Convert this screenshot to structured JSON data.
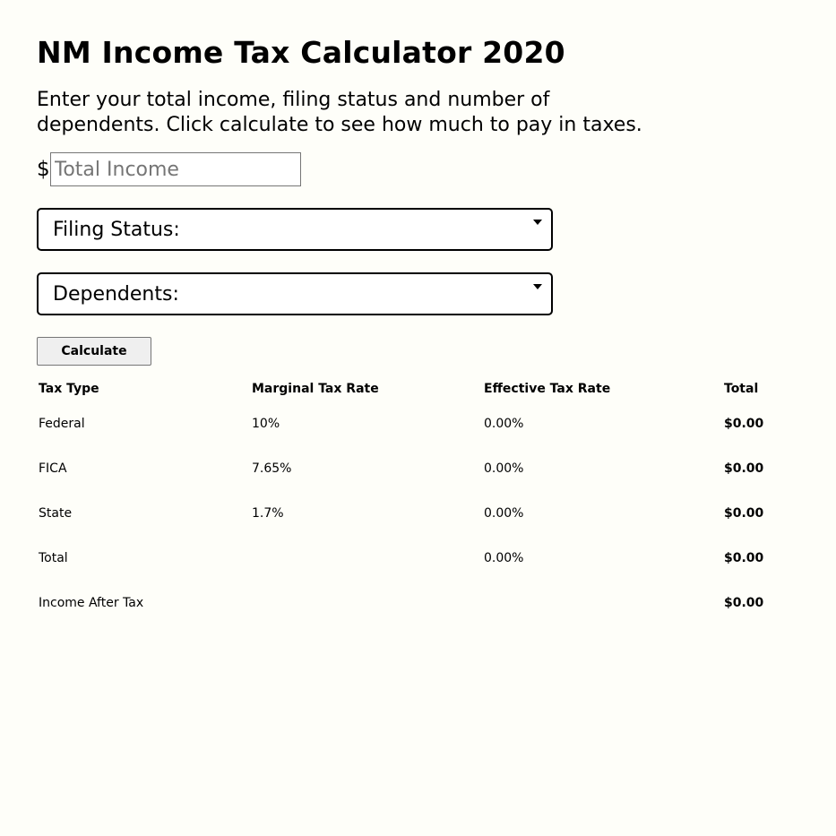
{
  "page": {
    "title": "NM Income Tax Calculator 2020",
    "intro": "Enter your total income, filing status and number of dependents. Click calculate to see how much to pay in taxes."
  },
  "form": {
    "currency_symbol": "$",
    "income_placeholder": "Total Income",
    "income_value": "",
    "filing_status_label": "Filing Status:",
    "dependents_label": "Dependents:",
    "calculate_label": "Calculate"
  },
  "table": {
    "headers": [
      "Tax Type",
      "Marginal Tax Rate",
      "Effective Tax Rate",
      "Total"
    ],
    "rows": [
      {
        "type": "Federal",
        "marginal": "10%",
        "effective": "0.00%",
        "total": "$0.00"
      },
      {
        "type": "FICA",
        "marginal": "7.65%",
        "effective": "0.00%",
        "total": "$0.00"
      },
      {
        "type": "State",
        "marginal": "1.7%",
        "effective": "0.00%",
        "total": "$0.00"
      },
      {
        "type": "Total",
        "marginal": "",
        "effective": "0.00%",
        "total": "$0.00"
      },
      {
        "type": "Income After Tax",
        "marginal": "",
        "effective": "",
        "total": "$0.00"
      }
    ]
  },
  "colors": {
    "background": "#fefef9",
    "button_bg": "#efefef"
  },
  "icons": {
    "select_caret": "caret-down-icon"
  }
}
